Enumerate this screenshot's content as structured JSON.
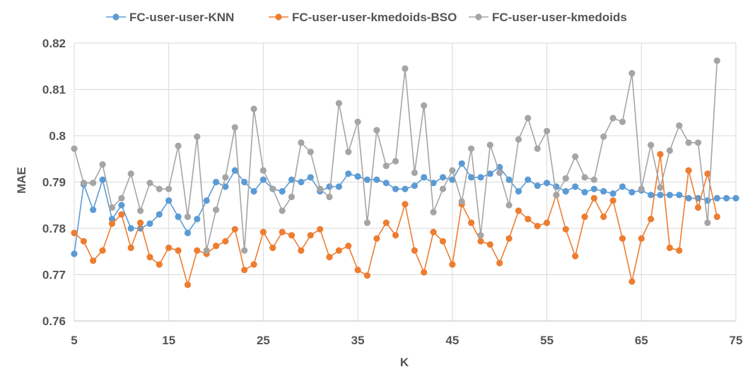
{
  "chart_data": {
    "type": "line",
    "title": "",
    "xlabel": "K",
    "ylabel": "MAE",
    "xlim": [
      5,
      75
    ],
    "ylim": [
      0.76,
      0.82
    ],
    "x_ticks": [
      "5",
      "15",
      "25",
      "35",
      "45",
      "55",
      "65",
      "75"
    ],
    "y_ticks": [
      "0.76",
      "0.77",
      "0.78",
      "0.79",
      "0.8",
      "0.81",
      "0.82"
    ],
    "grid": true,
    "legend_position": "top",
    "x": [
      5,
      6,
      7,
      8,
      9,
      10,
      11,
      12,
      13,
      14,
      15,
      16,
      17,
      18,
      19,
      20,
      21,
      22,
      23,
      24,
      25,
      26,
      27,
      28,
      29,
      30,
      31,
      32,
      33,
      34,
      35,
      36,
      37,
      38,
      39,
      40,
      41,
      42,
      43,
      44,
      45,
      46,
      47,
      48,
      49,
      50,
      51,
      52,
      53,
      54,
      55,
      56,
      57,
      58,
      59,
      60,
      61,
      62,
      63,
      64,
      65,
      66,
      67,
      68,
      69,
      70,
      71,
      72,
      73,
      74,
      75
    ],
    "series": [
      {
        "name": "FC-user-user-KNN",
        "color": "#5b9bd5",
        "values": [
          0.7745,
          0.7895,
          0.784,
          0.7905,
          0.782,
          0.785,
          0.78,
          0.78,
          0.781,
          0.783,
          0.786,
          0.7825,
          0.779,
          0.782,
          0.786,
          0.79,
          0.789,
          0.7925,
          0.79,
          0.788,
          0.7905,
          0.7885,
          0.788,
          0.7905,
          0.79,
          0.791,
          0.788,
          0.789,
          0.789,
          0.7918,
          0.7912,
          0.7905,
          0.7905,
          0.7898,
          0.7885,
          0.7885,
          0.7892,
          0.791,
          0.7898,
          0.791,
          0.7905,
          0.794,
          0.791,
          0.791,
          0.7918,
          0.7932,
          0.7905,
          0.788,
          0.7905,
          0.7892,
          0.7898,
          0.789,
          0.788,
          0.789,
          0.7878,
          0.7885,
          0.788,
          0.7875,
          0.789,
          0.7878,
          0.7882,
          0.7872,
          0.7872,
          0.7872,
          0.7872,
          0.7865,
          0.7865,
          0.786,
          0.7865,
          0.7865,
          0.7865
        ]
      },
      {
        "name": "FC-user-user-kmedoids-BSO",
        "color": "#ed7d31",
        "values": [
          0.779,
          0.7772,
          0.773,
          0.7752,
          0.781,
          0.783,
          0.7758,
          0.7812,
          0.7738,
          0.7722,
          0.7758,
          0.7752,
          0.7678,
          0.7752,
          0.7745,
          0.7762,
          0.7772,
          0.7798,
          0.771,
          0.7722,
          0.7792,
          0.7758,
          0.7792,
          0.7785,
          0.7752,
          0.7785,
          0.7798,
          0.7738,
          0.7752,
          0.7762,
          0.771,
          0.7698,
          0.7778,
          0.7812,
          0.7785,
          0.7852,
          0.7752,
          0.7705,
          0.7792,
          0.7772,
          0.7722,
          0.7852,
          0.7812,
          0.7772,
          0.7765,
          0.7725,
          0.7778,
          0.7838,
          0.782,
          0.7805,
          0.7812,
          0.7872,
          0.7798,
          0.774,
          0.7825,
          0.7865,
          0.7825,
          0.786,
          0.7778,
          0.7685,
          0.7778,
          0.782,
          0.796,
          0.7758,
          0.7752,
          0.7925,
          0.7845,
          0.7918,
          0.7825,
          null,
          null
        ]
      },
      {
        "name": "FC-user-user-kmedoids",
        "color": "#a5a5a5",
        "values": [
          0.7972,
          0.7898,
          0.7898,
          0.7938,
          0.7845,
          0.7865,
          0.7918,
          0.7838,
          0.7898,
          0.7885,
          0.7885,
          0.7978,
          0.7825,
          0.7998,
          0.7752,
          0.784,
          0.791,
          0.8018,
          0.7752,
          0.8058,
          0.7925,
          0.7885,
          0.7838,
          0.7868,
          0.7985,
          0.7965,
          0.7885,
          0.7868,
          0.807,
          0.7965,
          0.803,
          0.7812,
          0.8012,
          0.7935,
          0.7945,
          0.8145,
          0.792,
          0.8065,
          0.7835,
          0.7885,
          0.7925,
          0.7858,
          0.7972,
          0.7785,
          0.798,
          0.792,
          0.785,
          0.7992,
          0.8038,
          0.7972,
          0.801,
          0.7872,
          0.7908,
          0.7955,
          0.791,
          0.7905,
          0.7998,
          0.8038,
          0.803,
          0.8135,
          0.7885,
          0.798,
          0.7888,
          0.7968,
          0.8022,
          0.7985,
          0.7985,
          0.7812,
          0.8162,
          null,
          null
        ]
      }
    ]
  }
}
